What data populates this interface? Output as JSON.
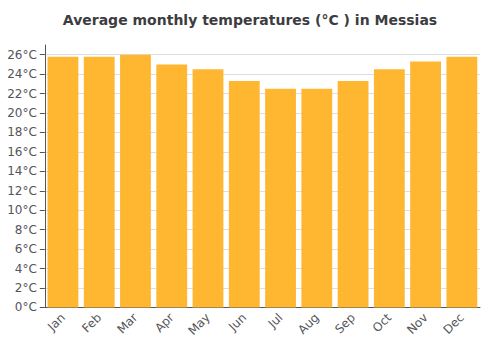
{
  "chart_data": {
    "type": "bar",
    "title": "Average monthly temperatures (°C ) in Messias",
    "categories": [
      "Jan",
      "Feb",
      "Mar",
      "Apr",
      "May",
      "Jun",
      "Jul",
      "Aug",
      "Sep",
      "Oct",
      "Nov",
      "Dec"
    ],
    "values": [
      25.8,
      25.8,
      26.0,
      25.0,
      24.5,
      23.3,
      22.5,
      22.5,
      23.3,
      24.5,
      25.3,
      25.8
    ],
    "color": "#FFB732",
    "ylim": [
      0,
      27
    ],
    "yticks": [
      {
        "value": 0,
        "label": "0°C"
      },
      {
        "value": 2,
        "label": "2°C"
      },
      {
        "value": 4,
        "label": "4°C"
      },
      {
        "value": 6,
        "label": "6°C"
      },
      {
        "value": 8,
        "label": "8°C"
      },
      {
        "value": 10,
        "label": "10°C"
      },
      {
        "value": 12,
        "label": "12°C"
      },
      {
        "value": 14,
        "label": "14°C"
      },
      {
        "value": 16,
        "label": "16°C"
      },
      {
        "value": 18,
        "label": "18°C"
      },
      {
        "value": 20,
        "label": "20°C"
      },
      {
        "value": 22,
        "label": "22°C"
      },
      {
        "value": 24,
        "label": "24°C"
      },
      {
        "value": 26,
        "label": "26°C"
      }
    ],
    "grid": true
  }
}
